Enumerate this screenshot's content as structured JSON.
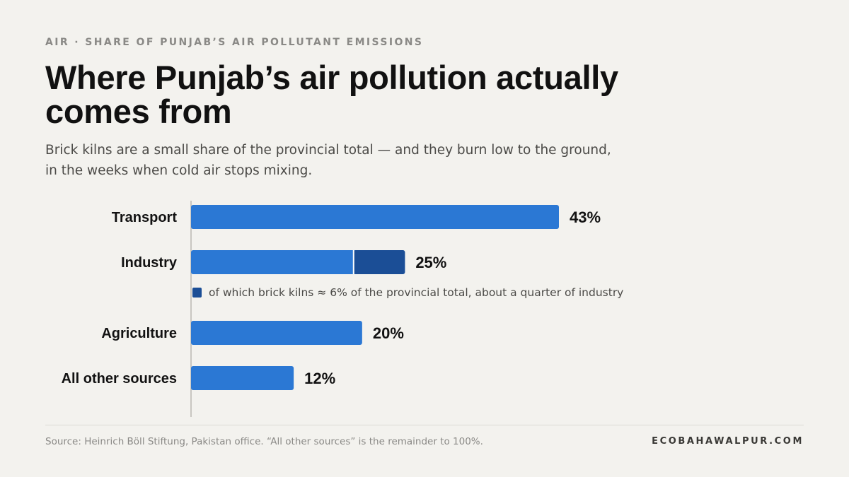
{
  "header": {
    "kicker": "AIR · SHARE OF PUNJAB’S AIR POLLUTANT EMISSIONS",
    "title": "Where Punjab’s air pollution actually comes from",
    "subtitle": "Brick kilns are a small share of the provincial total — and they burn low to the ground, in the weeks when cold air stops mixing."
  },
  "footer": {
    "source": "Source: Heinrich Böll Stiftung, Pakistan office. “All other sources” is the remainder to 100%.",
    "brand": "ECOBAHAWALPUR.COM"
  },
  "colors": {
    "bar": "#2b78d4",
    "sub_bar": "#1b4e96",
    "axis": "#c9c7c1",
    "label": "#121212",
    "note": "#4b4a47"
  },
  "chart_data": {
    "type": "bar",
    "orientation": "horizontal",
    "categories": [
      "Transport",
      "Industry",
      "Agriculture",
      "All other sources"
    ],
    "values": [
      43,
      25,
      20,
      12
    ],
    "value_labels": [
      "43%",
      "25%",
      "20%",
      "12%"
    ],
    "unit": "%",
    "xlim": [
      0,
      43
    ],
    "grid": false,
    "segment": {
      "category": "Industry",
      "name": "brick kilns",
      "value": 6,
      "note": "of which brick kilns ≈ 6% of the provincial total, about a quarter of industry"
    }
  }
}
